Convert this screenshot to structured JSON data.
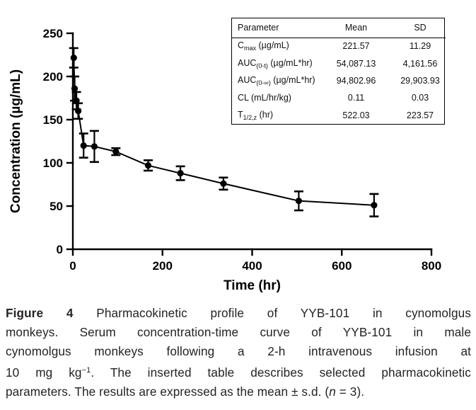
{
  "chart_data": {
    "type": "line",
    "title": "",
    "xlabel": "Time (hr)",
    "ylabel": "Concentration (µg/mL)",
    "xlim": [
      0,
      800
    ],
    "ylim": [
      0,
      250
    ],
    "xticks": [
      0,
      200,
      400,
      600,
      800
    ],
    "yticks": [
      0,
      50,
      100,
      150,
      200,
      250
    ],
    "grid": false,
    "legend": "none",
    "series": [
      {
        "name": "YYB-101 serum concentration (mean ± s.d., n = 3)",
        "marker": "filled-circle",
        "color": "#000000",
        "x": [
          2,
          4,
          8,
          12,
          24,
          48,
          96,
          168,
          240,
          336,
          504,
          672
        ],
        "y": [
          221.57,
          186,
          172,
          160,
          120,
          119,
          113,
          97,
          88,
          76,
          56,
          51
        ],
        "sd": [
          11.29,
          14,
          10,
          9,
          14,
          18,
          4,
          6,
          8,
          7,
          11,
          13
        ]
      }
    ]
  },
  "inset_table": {
    "headers": [
      "Parameter",
      "Mean",
      "SD"
    ],
    "rows": [
      {
        "param": [
          {
            "t": "C"
          },
          {
            "t": "max",
            "sub": true
          },
          {
            "t": " (µg/mL)"
          }
        ],
        "mean": "221.57",
        "sd": "11.29"
      },
      {
        "param": [
          {
            "t": "AUC"
          },
          {
            "t": "(0-t)",
            "sub": true
          },
          {
            "t": " (µg/mL*hr)"
          }
        ],
        "mean": "54,087.13",
        "sd": "4,161.56"
      },
      {
        "param": [
          {
            "t": "AUC"
          },
          {
            "t": "(0-∞)",
            "sub": true
          },
          {
            "t": " (µg/mL*hr)"
          }
        ],
        "mean": "94,802.96",
        "sd": "29,903.93"
      },
      {
        "param": [
          {
            "t": "CL (mL/hr/kg)"
          }
        ],
        "mean": "0.11",
        "sd": "0.03"
      },
      {
        "param": [
          {
            "t": "T"
          },
          {
            "t": "1/2,z",
            "sub": true
          },
          {
            "t": " (hr)"
          }
        ],
        "mean": "522.03",
        "sd": "223.57"
      }
    ]
  },
  "caption": {
    "lines": [
      [
        {
          "t": "Figure 4",
          "b": true
        },
        {
          "t": " Pharmacokinetic profile of YYB-101 in cynomolgus"
        }
      ],
      [
        {
          "t": "monkeys. Serum concentration-time curve of YYB-101 in male"
        }
      ],
      [
        {
          "t": "cynomolgus monkeys following a 2-h intravenous infusion at"
        }
      ],
      [
        {
          "t": "10 mg kg"
        },
        {
          "t": "−1",
          "sup": true
        },
        {
          "t": ". The inserted table describes selected pharmacokinetic"
        }
      ],
      [
        {
          "t": "parameters. The results are expressed as the mean ± s.d. ("
        },
        {
          "t": "n",
          "i": true
        },
        {
          "t": " = 3)."
        }
      ]
    ]
  }
}
